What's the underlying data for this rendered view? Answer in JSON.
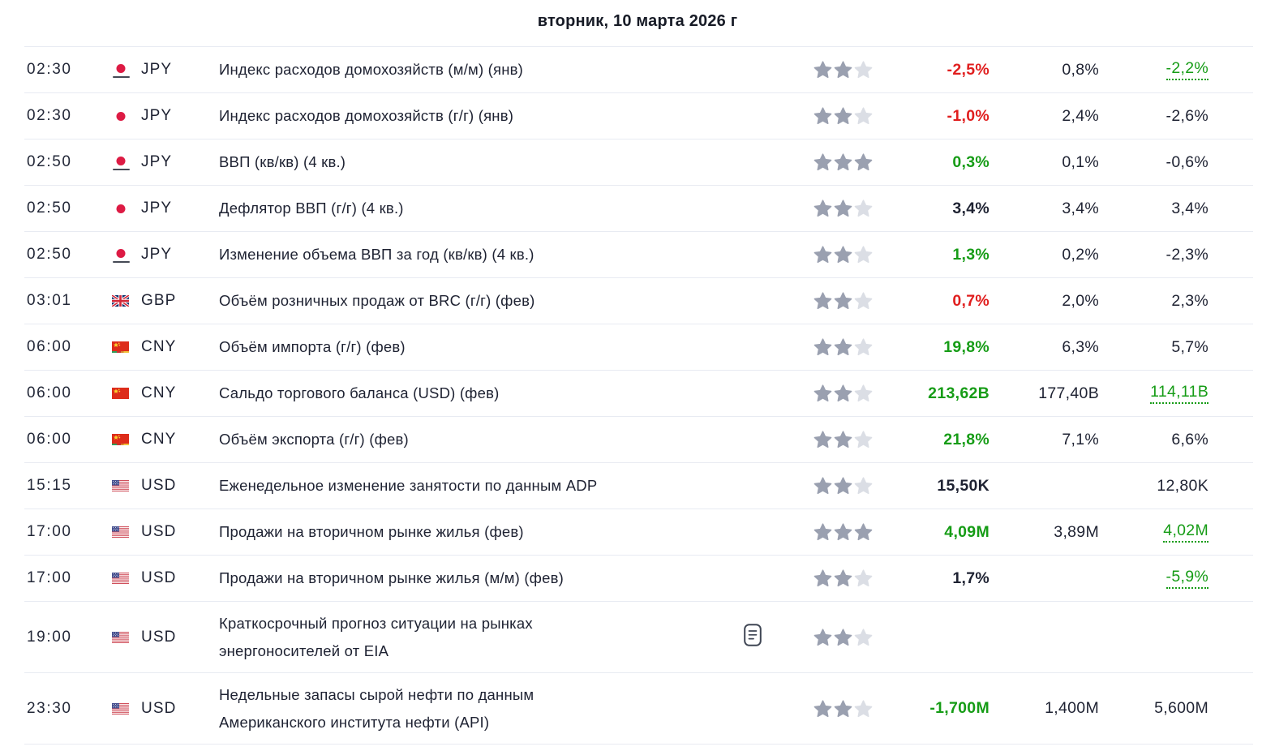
{
  "header": {
    "date_title": "вторник, 10 марта 2026 г"
  },
  "colors": {
    "positive": "#169c16",
    "negative": "#e01e1e",
    "text": "#1e2232",
    "star_filled": "#9aa0b0",
    "star_empty": "#dbdee5",
    "divider": "#e8ebf2",
    "flag_japan_dot": "#dd1b44",
    "flag_china_red": "#dd2c1a",
    "flag_uk_blue": "#0b2d6b",
    "flag_us_canton": "#46508f"
  },
  "icons": {
    "report": "report-icon",
    "importance": "star-icon"
  },
  "rows": [
    {
      "time": "02:30",
      "currency": "JPY",
      "flag": "jp",
      "flag_underline": true,
      "flag_strip": false,
      "event_lines": [
        "Индекс расходов домохозяйств (м/м) (янв)"
      ],
      "importance": 2,
      "report_icon": false,
      "actual": "-2,5%",
      "actual_tone": "red",
      "forecast": "0,8%",
      "previous": "-2,2%",
      "previous_tone": "green",
      "previous_revised": true
    },
    {
      "time": "02:30",
      "currency": "JPY",
      "flag": "jp",
      "flag_underline": false,
      "flag_strip": false,
      "event_lines": [
        "Индекс расходов домохозяйств (г/г) (янв)"
      ],
      "importance": 2,
      "report_icon": false,
      "actual": "-1,0%",
      "actual_tone": "red",
      "forecast": "2,4%",
      "previous": "-2,6%",
      "previous_tone": "dark",
      "previous_revised": false
    },
    {
      "time": "02:50",
      "currency": "JPY",
      "flag": "jp",
      "flag_underline": true,
      "flag_strip": false,
      "event_lines": [
        "ВВП (кв/кв) (4 кв.)"
      ],
      "importance": 3,
      "report_icon": false,
      "actual": "0,3%",
      "actual_tone": "green",
      "forecast": "0,1%",
      "previous": "-0,6%",
      "previous_tone": "dark",
      "previous_revised": false
    },
    {
      "time": "02:50",
      "currency": "JPY",
      "flag": "jp",
      "flag_underline": false,
      "flag_strip": false,
      "event_lines": [
        "Дефлятор ВВП (г/г) (4 кв.)"
      ],
      "importance": 2,
      "report_icon": false,
      "actual": "3,4%",
      "actual_tone": "dark",
      "forecast": "3,4%",
      "previous": "3,4%",
      "previous_tone": "dark",
      "previous_revised": false
    },
    {
      "time": "02:50",
      "currency": "JPY",
      "flag": "jp",
      "flag_underline": true,
      "flag_strip": false,
      "event_lines": [
        "Изменение объема ВВП за год (кв/кв) (4 кв.)"
      ],
      "importance": 2,
      "report_icon": false,
      "actual": "1,3%",
      "actual_tone": "green",
      "forecast": "0,2%",
      "previous": "-2,3%",
      "previous_tone": "dark",
      "previous_revised": false
    },
    {
      "time": "03:01",
      "currency": "GBP",
      "flag": "gb",
      "flag_underline": false,
      "flag_strip": false,
      "event_lines": [
        "Объём розничных продаж от BRC (г/г) (фев)"
      ],
      "importance": 2,
      "report_icon": false,
      "actual": "0,7%",
      "actual_tone": "red",
      "forecast": "2,0%",
      "previous": "2,3%",
      "previous_tone": "dark",
      "previous_revised": false
    },
    {
      "time": "06:00",
      "currency": "CNY",
      "flag": "cn",
      "flag_underline": false,
      "flag_strip": true,
      "event_lines": [
        "Объём импорта (г/г) (фев)"
      ],
      "importance": 2,
      "report_icon": false,
      "actual": "19,8%",
      "actual_tone": "green",
      "forecast": "6,3%",
      "previous": "5,7%",
      "previous_tone": "dark",
      "previous_revised": false
    },
    {
      "time": "06:00",
      "currency": "CNY",
      "flag": "cn",
      "flag_underline": false,
      "flag_strip": false,
      "event_lines": [
        "Сальдо торгового баланса (USD) (фев)"
      ],
      "importance": 2,
      "report_icon": false,
      "actual": "213,62B",
      "actual_tone": "green",
      "forecast": "177,40B",
      "previous": "114,11B",
      "previous_tone": "green",
      "previous_revised": true
    },
    {
      "time": "06:00",
      "currency": "CNY",
      "flag": "cn",
      "flag_underline": false,
      "flag_strip": true,
      "event_lines": [
        "Объём экспорта (г/г) (фев)"
      ],
      "importance": 2,
      "report_icon": false,
      "actual": "21,8%",
      "actual_tone": "green",
      "forecast": "7,1%",
      "previous": "6,6%",
      "previous_tone": "dark",
      "previous_revised": false
    },
    {
      "time": "15:15",
      "currency": "USD",
      "flag": "us",
      "flag_underline": false,
      "flag_strip": false,
      "event_lines": [
        "Еженедельное изменение занятости по данным ADP"
      ],
      "importance": 2,
      "report_icon": false,
      "actual": "15,50K",
      "actual_tone": "dark",
      "forecast": "",
      "previous": "12,80K",
      "previous_tone": "dark",
      "previous_revised": false
    },
    {
      "time": "17:00",
      "currency": "USD",
      "flag": "us",
      "flag_underline": false,
      "flag_strip": false,
      "event_lines": [
        "Продажи на вторичном рынке жилья (фев)"
      ],
      "importance": 3,
      "report_icon": false,
      "actual": "4,09M",
      "actual_tone": "green",
      "forecast": "3,89M",
      "previous": "4,02M",
      "previous_tone": "green",
      "previous_revised": true
    },
    {
      "time": "17:00",
      "currency": "USD",
      "flag": "us",
      "flag_underline": false,
      "flag_strip": false,
      "event_lines": [
        "Продажи на вторичном рынке жилья (м/м) (фев)"
      ],
      "importance": 2,
      "report_icon": false,
      "actual": "1,7%",
      "actual_tone": "dark",
      "forecast": "",
      "previous": "-5,9%",
      "previous_tone": "green",
      "previous_revised": true
    },
    {
      "time": "19:00",
      "currency": "USD",
      "flag": "us",
      "flag_underline": false,
      "flag_strip": false,
      "event_lines": [
        "Краткосрочный прогноз ситуации на рынках",
        "энергоносителей от EIA"
      ],
      "importance": 2,
      "report_icon": true,
      "actual": "",
      "actual_tone": "dark",
      "forecast": "",
      "previous": "",
      "previous_tone": "dark",
      "previous_revised": false
    },
    {
      "time": "23:30",
      "currency": "USD",
      "flag": "us",
      "flag_underline": false,
      "flag_strip": false,
      "event_lines": [
        "Недельные запасы сырой нефти по данным",
        "Американского института нефти (API)"
      ],
      "importance": 2,
      "report_icon": false,
      "actual": "-1,700M",
      "actual_tone": "green",
      "forecast": "1,400M",
      "previous": "5,600M",
      "previous_tone": "dark",
      "previous_revised": false
    }
  ]
}
